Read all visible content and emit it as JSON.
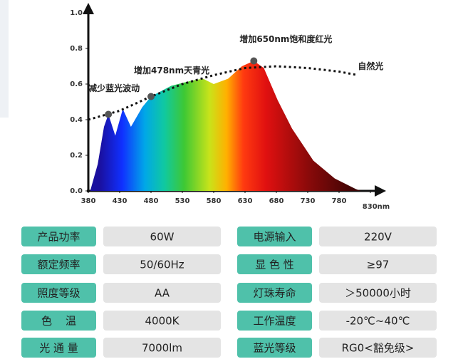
{
  "chart_data": {
    "type": "spectrum",
    "xlim": [
      380,
      830
    ],
    "ylim": [
      0,
      1
    ],
    "xticks": [
      380,
      430,
      480,
      530,
      580,
      630,
      680,
      730,
      780,
      {
        "value": 830,
        "label": "830nm"
      }
    ],
    "yticks": [
      {
        "value": 0,
        "label": "0.0"
      },
      0.2,
      0.4,
      0.6,
      0.8,
      {
        "value": 1,
        "label": "1.0"
      }
    ],
    "series": [
      {
        "x": [
          383,
          395,
          405,
          412,
          423,
          435,
          448,
          466,
          480,
          512,
          546,
          563,
          580,
          603,
          625,
          644,
          660,
          682,
          705,
          739,
          773,
          807,
          815
        ],
        "values": [
          0.0,
          0.15,
          0.36,
          0.43,
          0.31,
          0.46,
          0.36,
          0.47,
          0.53,
          0.59,
          0.62,
          0.63,
          0.6,
          0.63,
          0.7,
          0.73,
          0.69,
          0.51,
          0.35,
          0.17,
          0.07,
          0.01,
          0.0
        ]
      },
      {
        "name": "自然光",
        "color": "#111111",
        "x": [
          380,
          430,
          480,
          530,
          580,
          630,
          680,
          730,
          780,
          810
        ],
        "values": [
          0.4,
          0.45,
          0.53,
          0.6,
          0.65,
          0.69,
          0.7,
          0.69,
          0.67,
          0.65
        ]
      }
    ],
    "annotations": [
      "减少蓝光波动",
      "增加478nm天青光",
      "增加650nm饱和度红光"
    ]
  },
  "table": {
    "rows": [
      [
        "产品功率",
        "60W",
        "电源输入",
        "220V"
      ],
      [
        "额定频率",
        "50/60Hz",
        "显 色 性",
        "≥97"
      ],
      [
        "照度等级",
        "AA",
        "灯珠寿命",
        "＞50000小时"
      ],
      [
        "色    温",
        "4000K",
        "工作温度",
        "-20℃~40℃"
      ],
      [
        "光 通 量",
        "7000lm",
        "蓝光等级",
        "RG0<豁免级>"
      ]
    ]
  }
}
